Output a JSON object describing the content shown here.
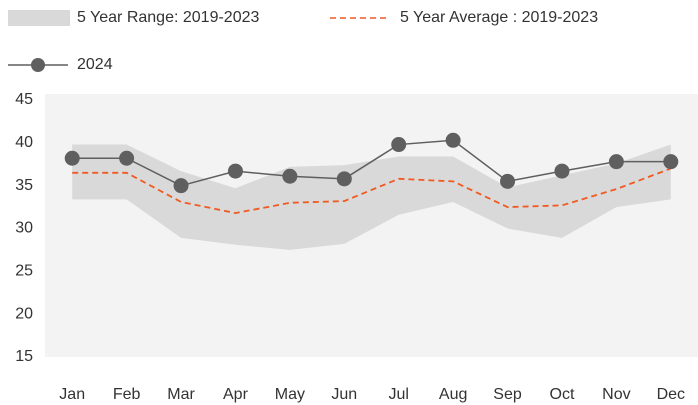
{
  "chart_data": {
    "type": "line",
    "categories": [
      "Jan",
      "Feb",
      "Mar",
      "Apr",
      "May",
      "Jun",
      "Jul",
      "Aug",
      "Sep",
      "Oct",
      "Nov",
      "Dec"
    ],
    "series": [
      {
        "name": "5 Year Range: 2019-2023",
        "color": "#d9d9d9",
        "low": [
          33.4,
          33.4,
          28.9,
          28.1,
          27.5,
          28.2,
          31.6,
          33.1,
          30.0,
          28.9,
          32.5,
          33.4
        ],
        "high": [
          39.8,
          39.8,
          36.7,
          34.7,
          37.2,
          37.4,
          38.4,
          38.4,
          34.8,
          36.2,
          37.6,
          39.8
        ]
      },
      {
        "name": "5 Year Average : 2019-2023",
        "color": "#f05a22",
        "dash": true,
        "values": [
          36.5,
          36.5,
          33.1,
          31.8,
          33.0,
          33.2,
          35.8,
          35.5,
          32.5,
          32.7,
          34.6,
          37.0
        ]
      },
      {
        "name": "2024",
        "color": "#5f5f5f",
        "marker": true,
        "values": [
          38.2,
          38.2,
          35.0,
          36.7,
          36.1,
          35.8,
          39.8,
          40.3,
          35.5,
          36.7,
          37.8,
          37.8
        ]
      }
    ],
    "ylim": [
      15,
      45
    ],
    "yticks": [
      15,
      20,
      25,
      30,
      35,
      40,
      45
    ]
  }
}
